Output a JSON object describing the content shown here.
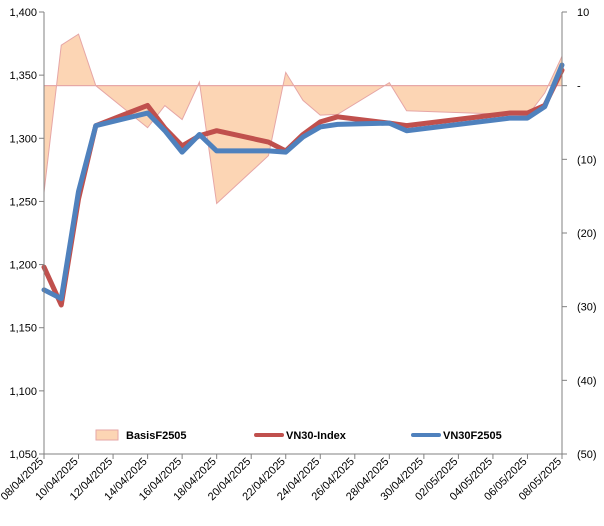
{
  "chart_data": {
    "type": "line",
    "x": [
      "08/04/2025",
      "09/04/2025",
      "10/04/2025",
      "11/04/2025",
      "14/04/2025",
      "15/04/2025",
      "16/04/2025",
      "17/04/2025",
      "18/04/2025",
      "21/04/2025",
      "22/04/2025",
      "23/04/2025",
      "24/04/2025",
      "25/04/2025",
      "28/04/2025",
      "29/04/2025",
      "05/05/2025",
      "06/05/2025",
      "07/05/2025",
      "08/05/2025"
    ],
    "x_tick_labels": [
      "08/04/2025",
      "10/04/2025",
      "12/04/2025",
      "14/04/2025",
      "16/04/2025",
      "18/04/2025",
      "20/04/2025",
      "22/04/2025",
      "24/04/2025",
      "26/04/2025",
      "28/04/2025",
      "30/04/2025",
      "02/05/2025",
      "04/05/2025",
      "06/05/2025",
      "08/05/2025"
    ],
    "x_range": [
      "08/04/2025",
      "08/05/2025"
    ],
    "y_left": {
      "ticks": [
        "1,050",
        "1,100",
        "1,150",
        "1,200",
        "1,250",
        "1,300",
        "1,350",
        "1,400"
      ],
      "ylim": [
        1050,
        1400
      ]
    },
    "y_right": {
      "ticks": [
        "(50)",
        "(40)",
        "(30)",
        "(20)",
        "(10)",
        "-",
        "10"
      ],
      "ylim": [
        -50,
        10
      ]
    },
    "grid": false,
    "legend_position": "bottom-inside",
    "series": [
      {
        "name": "BasisF2505",
        "axis": "right",
        "kind": "area",
        "color": "#fcd5b4",
        "edge_color": "#e6a6a6",
        "values": [
          -14.5,
          5.5,
          7,
          0,
          -5.7,
          -2.7,
          -4.6,
          0.5,
          -16,
          -9.5,
          1.8,
          -2,
          -4,
          -3.9,
          0.4,
          -3.4,
          -3.9,
          -4.1,
          -1,
          4
        ]
      },
      {
        "name": "VN30-Index",
        "axis": "left",
        "kind": "line",
        "color": "#c0504d",
        "values": [
          1198,
          1168,
          1252,
          1310,
          1326,
          1308,
          1294,
          1302,
          1306,
          1297,
          1290,
          1303,
          1313,
          1317,
          1312,
          1310,
          1320,
          1320,
          1326,
          1354
        ]
      },
      {
        "name": "VN30F2505",
        "axis": "left",
        "kind": "line",
        "color": "#4f81bd",
        "values": [
          1180,
          1173,
          1258,
          1310,
          1320,
          1306,
          1289,
          1303,
          1290,
          1290,
          1289,
          1301,
          1309,
          1311,
          1312,
          1306,
          1316,
          1316,
          1325,
          1358
        ]
      }
    ]
  }
}
